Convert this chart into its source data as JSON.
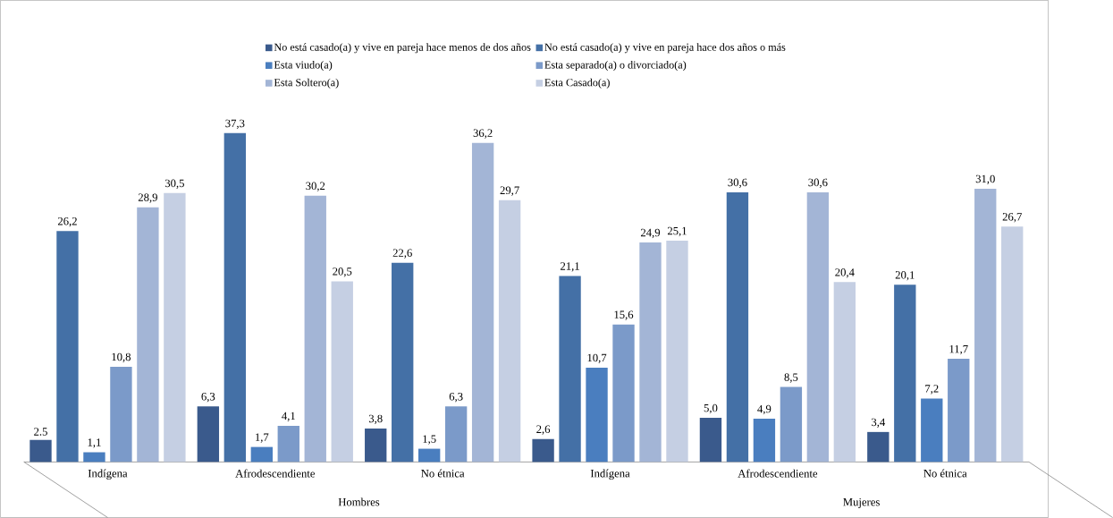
{
  "chart_data": {
    "type": "bar",
    "categories": [
      "Indígena",
      "Afrodescendiente",
      "No étnica",
      "Indígena",
      "Afrodescendiente",
      "No étnica"
    ],
    "annotations": [
      "Hombres",
      "Mujeres"
    ],
    "series": [
      {
        "name": "No está casado(a) y vive en pareja hace menos de dos años",
        "color": "#3a5a8c",
        "values": [
          2.5,
          6.3,
          3.8,
          2.6,
          5.0,
          3.4
        ],
        "value_labels": [
          "2.5",
          "6,3",
          "3,8",
          "2,6",
          "5,0",
          "3,4"
        ]
      },
      {
        "name": "No está casado(a) y vive en pareja hace dos años o más",
        "color": "#4470a6",
        "values": [
          26.2,
          37.3,
          22.6,
          21.1,
          30.6,
          20.1
        ],
        "value_labels": [
          "26,2",
          "37,3",
          "22,6",
          "21,1",
          "30,6",
          "20,1"
        ]
      },
      {
        "name": "Esta viudo(a)",
        "color": "#4a7ebf",
        "values": [
          1.1,
          1.7,
          1.5,
          10.7,
          4.9,
          7.2
        ],
        "value_labels": [
          "1,1",
          "1,7",
          "1,5",
          "10,7",
          "4,9",
          "7,2"
        ]
      },
      {
        "name": "Esta separado(a) o divorciado(a)",
        "color": "#7b9ac9",
        "values": [
          10.8,
          4.1,
          6.3,
          15.6,
          8.5,
          11.7
        ],
        "value_labels": [
          "10,8",
          "4,1",
          "6,3",
          "15,6",
          "8,5",
          "11,7"
        ]
      },
      {
        "name": "Esta Soltero(a)",
        "color": "#a3b5d6",
        "values": [
          28.9,
          30.2,
          36.2,
          24.9,
          30.6,
          31.0
        ],
        "value_labels": [
          "28,9",
          "30,2",
          "36,2",
          "24,9",
          "30,6",
          "31,0"
        ]
      },
      {
        "name": "Esta Casado(a)",
        "color": "#c5cfe3",
        "values": [
          30.5,
          20.5,
          29.7,
          25.1,
          20.4,
          26.7
        ],
        "value_labels": [
          "30,5",
          "20,5",
          "29,7",
          "25,1",
          "20,4",
          "26,7"
        ]
      }
    ],
    "legend": "top",
    "grid": false
  }
}
